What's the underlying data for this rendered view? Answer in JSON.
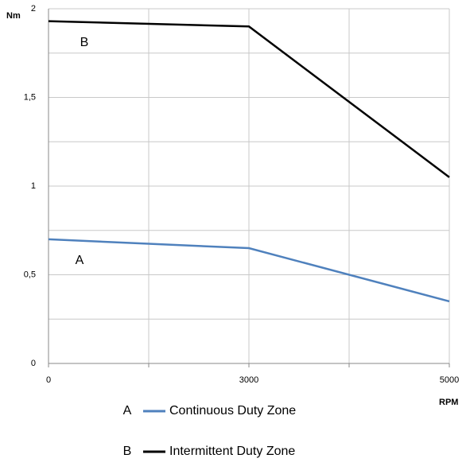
{
  "chart_data": {
    "type": "line",
    "y_label": "Nm",
    "x_label": "RPM",
    "categories": [
      "0",
      "3000",
      "5000"
    ],
    "series": [
      {
        "label": "A",
        "name": "Continuous Duty Zone",
        "color": "#4f81bd",
        "values": [
          0.7,
          0.65,
          0.35
        ]
      },
      {
        "label": "B",
        "name": "Intermittent Duty Zone",
        "color": "#000000",
        "values": [
          1.93,
          1.9,
          1.05
        ]
      }
    ],
    "ylim": [
      0,
      2
    ],
    "yticks": [
      0,
      {
        "value": 0.5,
        "label": "0,5"
      },
      1,
      {
        "value": 1.5,
        "label": "1,5"
      },
      2
    ],
    "grid": true
  }
}
